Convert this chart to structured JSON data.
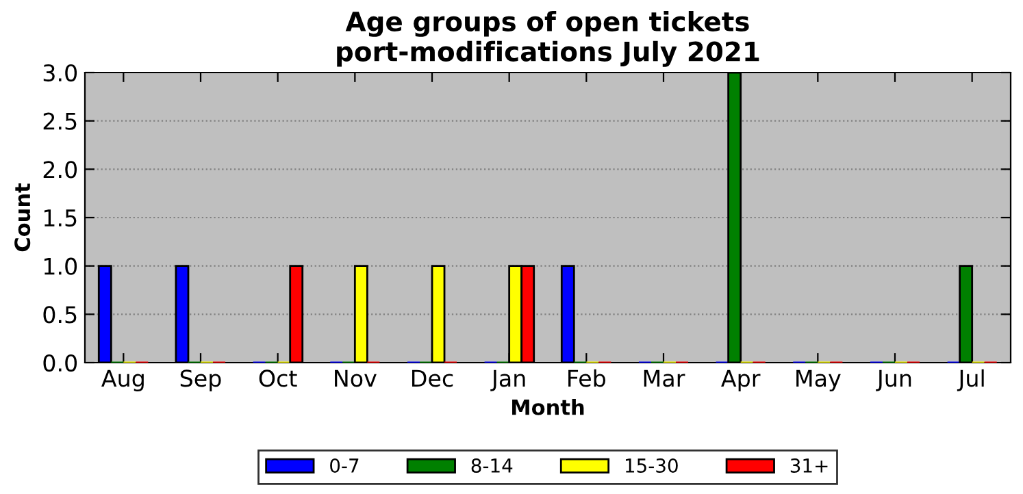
{
  "chart_data": {
    "type": "bar",
    "title": "Age groups of open tickets\nport-modifications July 2021",
    "xlabel": "Month",
    "ylabel": "Count",
    "categories": [
      "Aug",
      "Sep",
      "Oct",
      "Nov",
      "Dec",
      "Jan",
      "Feb",
      "Mar",
      "Apr",
      "May",
      "Jun",
      "Jul"
    ],
    "series": [
      {
        "name": "0-7",
        "color": "#0000ff",
        "values": [
          1,
          1,
          0,
          0,
          0,
          0,
          1,
          0,
          0,
          0,
          0,
          0
        ]
      },
      {
        "name": "8-14",
        "color": "#008000",
        "values": [
          0,
          0,
          0,
          0,
          0,
          0,
          0,
          0,
          3,
          0,
          0,
          1
        ]
      },
      {
        "name": "15-30",
        "color": "#ffff00",
        "values": [
          0,
          0,
          0,
          1,
          1,
          1,
          0,
          0,
          0,
          0,
          0,
          0
        ]
      },
      {
        "name": "31+",
        "color": "#ff0000",
        "values": [
          0,
          0,
          1,
          0,
          0,
          1,
          0,
          0,
          0,
          0,
          0,
          0
        ]
      }
    ],
    "ylim": [
      0,
      3
    ],
    "yticks": [
      {
        "value": 0,
        "label": "0.0"
      },
      {
        "value": 0.5,
        "label": "0.5"
      },
      {
        "value": 1,
        "label": "1.0"
      },
      {
        "value": 1.5,
        "label": "1.5"
      },
      {
        "value": 2,
        "label": "2.0"
      },
      {
        "value": 2.5,
        "label": "2.5"
      },
      {
        "value": 3,
        "label": "3.0"
      }
    ],
    "grid": "y",
    "legend": "bottom"
  }
}
